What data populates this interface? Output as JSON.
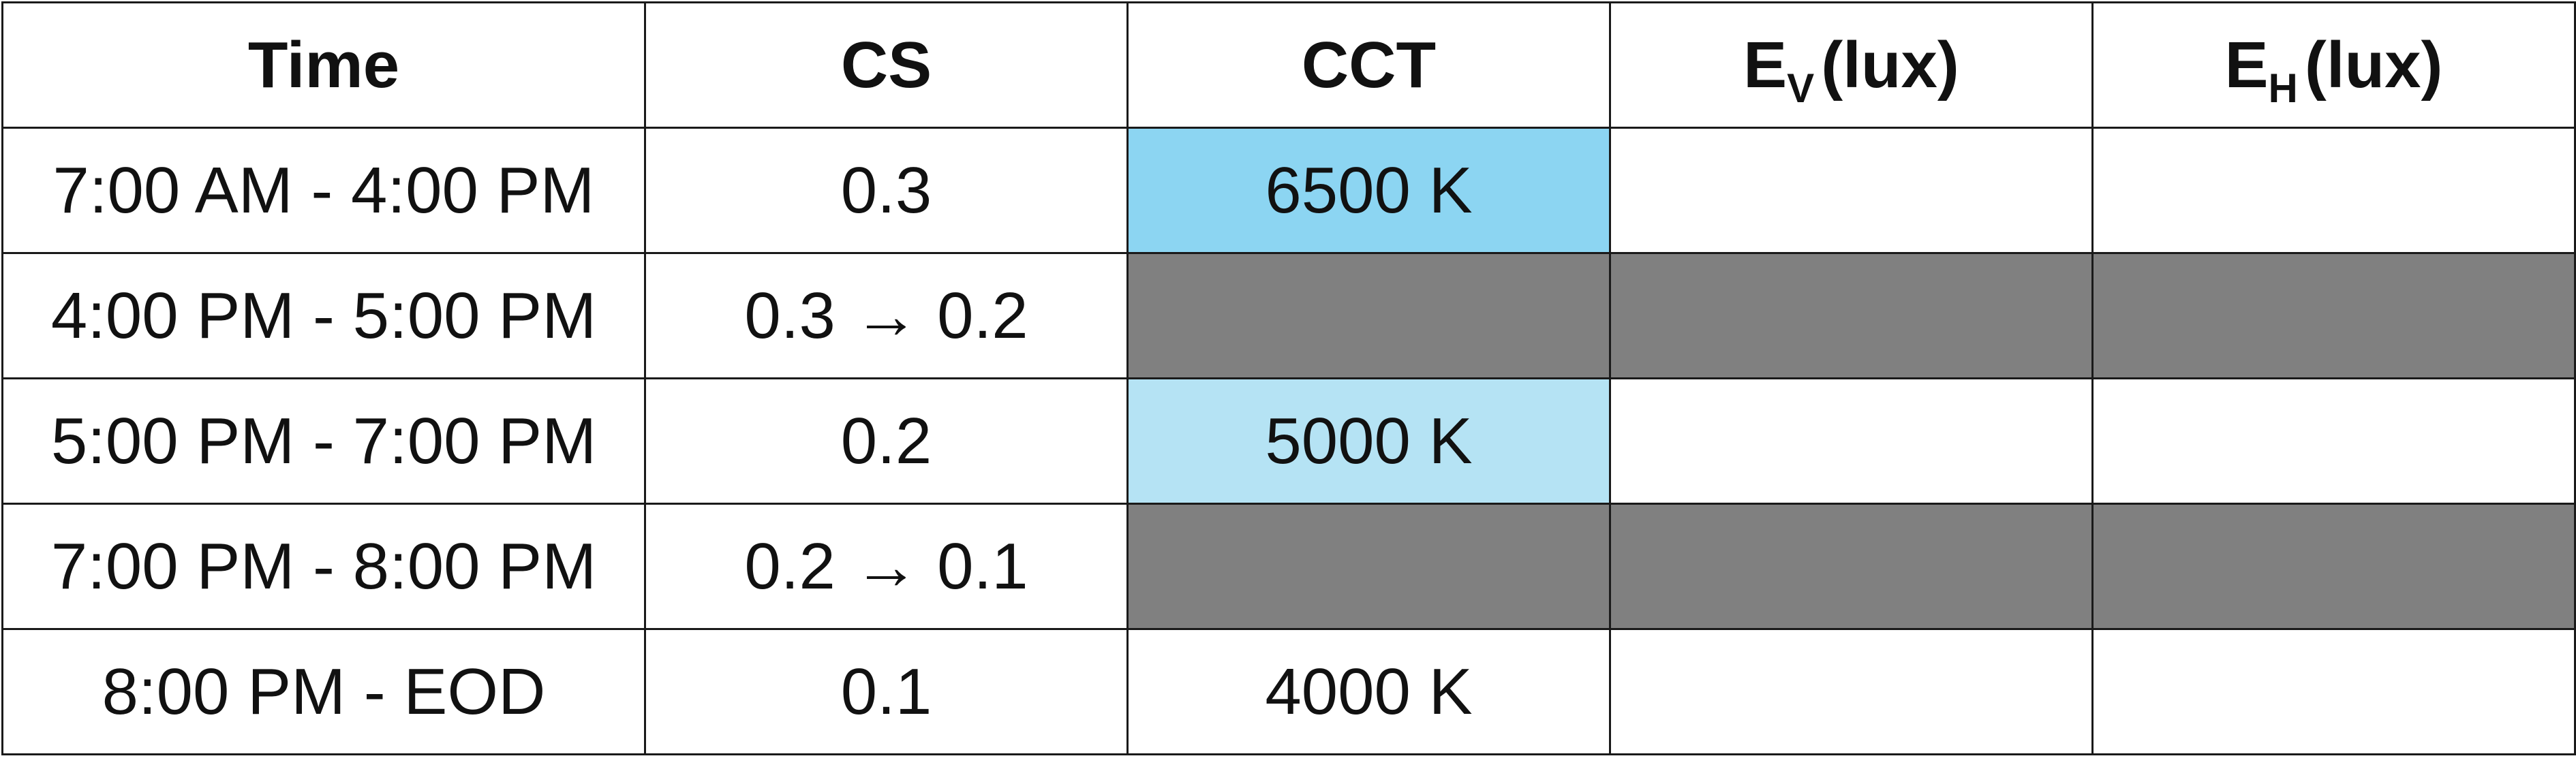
{
  "table": {
    "headers": {
      "time": "Time",
      "cs": "CS",
      "cct": "CCT",
      "ev_main": "E",
      "ev_sub": "V",
      "ev_unit": "(lux)",
      "eh_main": "E",
      "eh_sub": "H",
      "eh_unit": "(lux)"
    },
    "rows": [
      {
        "time": "7:00 AM - 4:00 PM",
        "cs": "0.3",
        "cct": "6500 K",
        "ev": "",
        "eh": ""
      },
      {
        "time": "4:00 PM - 5:00 PM",
        "cs": "0.3 → 0.2",
        "cct": "",
        "ev": "",
        "eh": ""
      },
      {
        "time": "5:00 PM - 7:00 PM",
        "cs": "0.2",
        "cct": "5000 K",
        "ev": "",
        "eh": ""
      },
      {
        "time": "7:00 PM - 8:00 PM",
        "cs": "0.2 → 0.1",
        "cct": "",
        "ev": "",
        "eh": ""
      },
      {
        "time": "8:00 PM - EOD",
        "cs": "0.1",
        "cct": "4000 K",
        "ev": "",
        "eh": ""
      }
    ]
  },
  "colors": {
    "cct_6500": "#8cd5f2",
    "cct_5000": "#b5e3f4",
    "transition_fill": "#808080",
    "default_fill": "#ffffff",
    "border": "#1a1a1a"
  }
}
